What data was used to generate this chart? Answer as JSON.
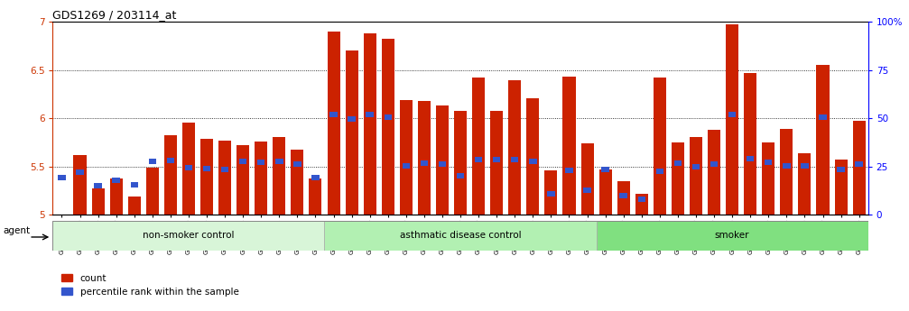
{
  "title": "GDS1269 / 203114_at",
  "samples": [
    "GSM38345",
    "GSM38346",
    "GSM38348",
    "GSM38350",
    "GSM38351",
    "GSM38353",
    "GSM38355",
    "GSM38356",
    "GSM38358",
    "GSM38362",
    "GSM38368",
    "GSM38371",
    "GSM38373",
    "GSM38377",
    "GSM38385",
    "GSM38361",
    "GSM38363",
    "GSM38364",
    "GSM38365",
    "GSM38370",
    "GSM38372",
    "GSM38375",
    "GSM38378",
    "GSM38379",
    "GSM38381",
    "GSM38383",
    "GSM38386",
    "GSM38387",
    "GSM38388",
    "GSM38389",
    "GSM38347",
    "GSM38349",
    "GSM38352",
    "GSM38354",
    "GSM38357",
    "GSM38359",
    "GSM38360",
    "GSM38366",
    "GSM38367",
    "GSM38369",
    "GSM38374",
    "GSM38376",
    "GSM38380",
    "GSM38382",
    "GSM38384"
  ],
  "red_values": [
    5.0,
    5.62,
    5.27,
    5.37,
    5.19,
    5.49,
    5.82,
    5.95,
    5.79,
    5.77,
    5.72,
    5.76,
    5.8,
    5.67,
    5.37,
    6.9,
    6.7,
    6.88,
    6.82,
    6.19,
    6.18,
    6.13,
    6.08,
    6.42,
    6.08,
    6.39,
    6.21,
    5.46,
    6.43,
    5.74,
    5.47,
    5.35,
    5.22,
    6.42,
    5.75,
    5.8,
    5.88,
    6.97,
    6.47,
    5.75,
    5.89,
    5.64,
    6.55,
    5.57,
    5.97
  ],
  "blue_values": [
    5.38,
    5.44,
    5.3,
    5.36,
    5.31,
    5.55,
    5.56,
    5.49,
    5.48,
    5.47,
    5.55,
    5.54,
    5.55,
    5.52,
    5.38,
    6.04,
    5.99,
    6.04,
    6.01,
    5.51,
    5.53,
    5.52,
    5.4,
    5.57,
    5.57,
    5.57,
    5.55,
    5.22,
    5.46,
    5.25,
    5.47,
    5.2,
    5.16,
    5.45,
    5.53,
    5.5,
    5.52,
    6.04,
    5.58,
    5.54,
    5.51,
    5.51,
    6.01,
    5.47,
    5.52
  ],
  "groups": [
    {
      "label": "non-smoker control",
      "start": 0,
      "end": 15
    },
    {
      "label": "asthmatic disease control",
      "start": 15,
      "end": 30
    },
    {
      "label": "smoker",
      "start": 30,
      "end": 45
    }
  ],
  "group_colors": [
    "#d8f5d8",
    "#b2f0b2",
    "#80e080"
  ],
  "ylim_left": [
    5.0,
    7.0
  ],
  "ylim_right": [
    0,
    100
  ],
  "yticks_left": [
    5.0,
    5.5,
    6.0,
    6.5,
    7.0
  ],
  "ytick_labels_left": [
    "5",
    "5.5",
    "6",
    "6.5",
    "7"
  ],
  "yticks_right": [
    0,
    25,
    50,
    75,
    100
  ],
  "ytick_labels_right": [
    "0",
    "25",
    "50",
    "75",
    "100%"
  ],
  "bar_color": "#cc2200",
  "blue_color": "#3355cc",
  "agent_label": "agent"
}
